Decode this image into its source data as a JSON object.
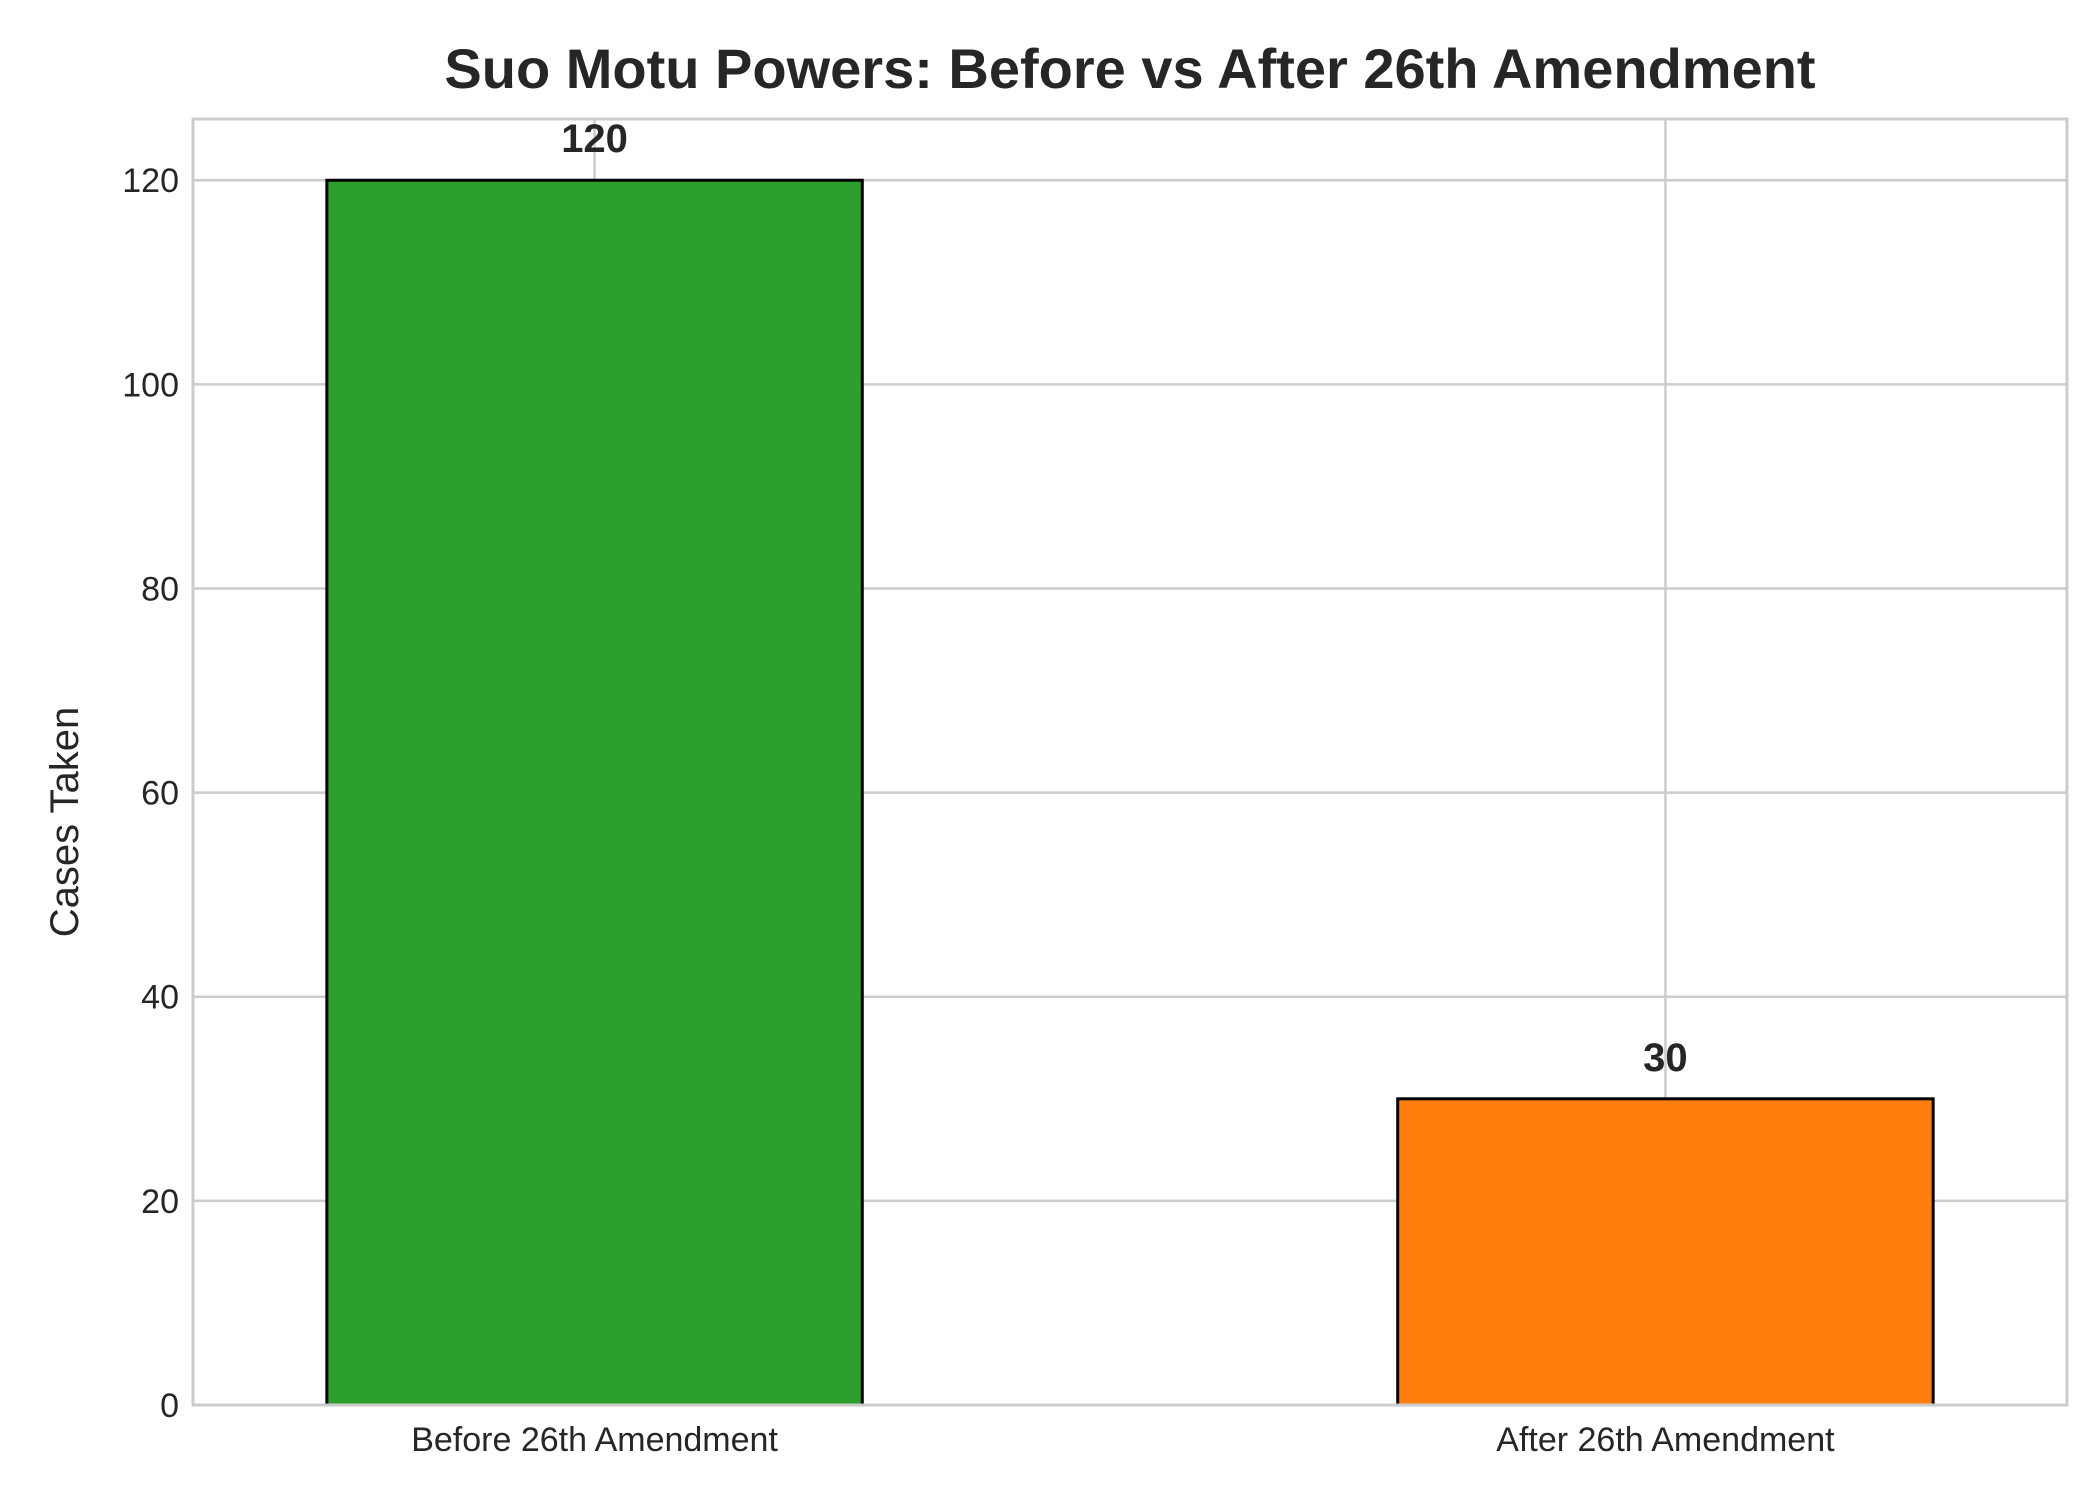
{
  "chart_data": {
    "type": "bar",
    "title": "Suo Motu Powers: Before vs After 26th Amendment",
    "xlabel": "",
    "ylabel": "Cases Taken",
    "categories": [
      "Before 26th Amendment",
      "After 26th Amendment"
    ],
    "values": [
      120,
      30
    ],
    "data_labels": [
      "120",
      "30"
    ],
    "colors": [
      "#2ca02c",
      "#ff7f0e"
    ],
    "ylim": [
      0,
      126
    ],
    "yticks": [
      0,
      20,
      40,
      60,
      80,
      100,
      120
    ],
    "grid": true,
    "legend": "none"
  }
}
